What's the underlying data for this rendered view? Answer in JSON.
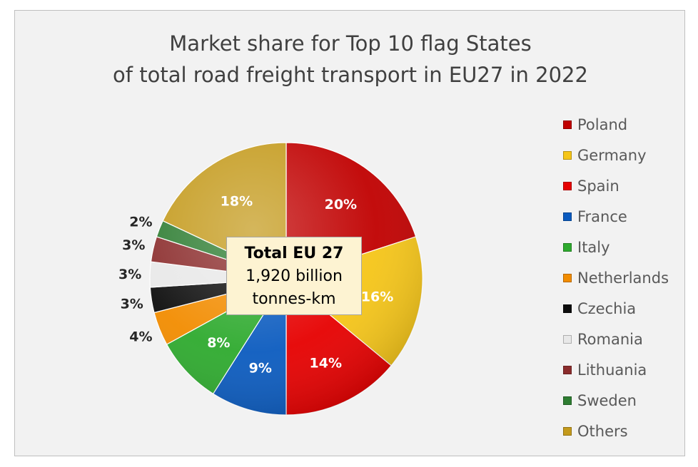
{
  "title": {
    "line1": "Market share for Top 10 flag States",
    "line2": "of total road freight transport in EU27 in 2022"
  },
  "callout": {
    "title": "Total EU 27",
    "line1": "1,920 billion",
    "line2": "tonnes-km"
  },
  "chart_data": {
    "type": "pie",
    "title": "Market share for Top 10 flag States of total road freight transport in EU27 in 2022",
    "start_angle_deg": 0,
    "direction": "clockwise",
    "legend_position": "right",
    "slices": [
      {
        "label": "Poland",
        "value": 20,
        "display": "20%",
        "color": "#c00000",
        "label_color": "#ffffff"
      },
      {
        "label": "Germany",
        "value": 16,
        "display": "16%",
        "color": "#f5c518",
        "label_color": "#ffffff"
      },
      {
        "label": "Spain",
        "value": 14,
        "display": "14%",
        "color": "#e60000",
        "label_color": "#ffffff"
      },
      {
        "label": "France",
        "value": 9,
        "display": "9%",
        "color": "#0b5bbf",
        "label_color": "#ffffff"
      },
      {
        "label": "Italy",
        "value": 8,
        "display": "8%",
        "color": "#2eaa2e",
        "label_color": "#ffffff"
      },
      {
        "label": "Netherlands",
        "value": 4,
        "display": "4%",
        "color": "#f28c00",
        "label_color": "#262626"
      },
      {
        "label": "Czechia",
        "value": 3,
        "display": "3%",
        "color": "#0d0d0d",
        "label_color": "#262626"
      },
      {
        "label": "Romania",
        "value": 3,
        "display": "3%",
        "color": "#e8e8e8",
        "label_color": "#262626"
      },
      {
        "label": "Lithuania",
        "value": 3,
        "display": "3%",
        "color": "#8b2c2c",
        "label_color": "#262626"
      },
      {
        "label": "Sweden",
        "value": 2,
        "display": "2%",
        "color": "#2e7d32",
        "label_color": "#262626"
      },
      {
        "label": "Others",
        "value": 18,
        "display": "18%",
        "color": "#c49a1c",
        "label_color": "#ffffff"
      }
    ]
  }
}
